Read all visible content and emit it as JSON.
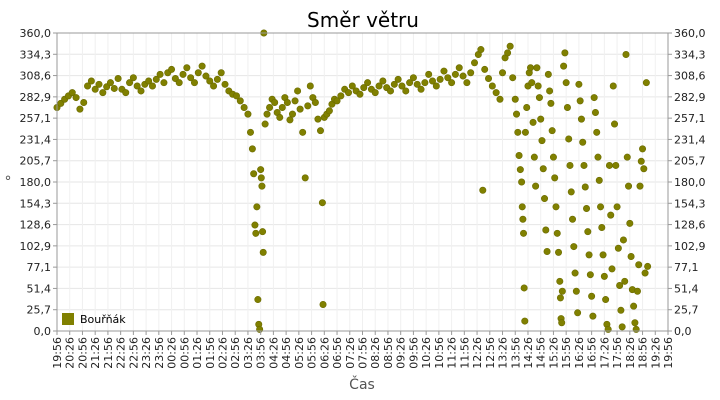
{
  "chart_data": {
    "type": "scatter",
    "title": "Směr větru",
    "xlabel": "Čas",
    "ylabel": "°",
    "ylim": [
      0,
      360
    ],
    "y_ticks": [
      "0,0",
      "25,7",
      "51,4",
      "77,1",
      "102,9",
      "128,6",
      "154,3",
      "180,0",
      "205,7",
      "231,4",
      "257,1",
      "282,9",
      "308,6",
      "334,3",
      "360,0"
    ],
    "x_ticks": [
      "19:56",
      "20:26",
      "20:56",
      "21:26",
      "21:56",
      "22:26",
      "22:56",
      "23:26",
      "23:56",
      "00:26",
      "00:56",
      "01:26",
      "01:56",
      "02:26",
      "02:56",
      "03:26",
      "03:56",
      "04:26",
      "04:56",
      "05:26",
      "05:56",
      "06:26",
      "06:56",
      "07:26",
      "07:56",
      "08:26",
      "08:56",
      "09:26",
      "09:56",
      "10:26",
      "10:56",
      "11:26",
      "11:56",
      "12:26",
      "12:56",
      "13:26",
      "13:56",
      "14:26",
      "14:56",
      "15:26",
      "15:56",
      "16:26",
      "16:56",
      "17:26",
      "17:56",
      "18:26",
      "18:56",
      "19:26",
      "19:56"
    ],
    "grid": true,
    "legend_position": "bottom-left",
    "series": [
      {
        "name": "Bouřňák",
        "color": "#808000",
        "points": [
          [
            0.0,
            270
          ],
          [
            0.3,
            275
          ],
          [
            0.6,
            280
          ],
          [
            0.9,
            284
          ],
          [
            1.2,
            288
          ],
          [
            1.5,
            282
          ],
          [
            1.8,
            268
          ],
          [
            2.1,
            276
          ],
          [
            2.4,
            296
          ],
          [
            2.7,
            302
          ],
          [
            3.0,
            292
          ],
          [
            3.3,
            298
          ],
          [
            3.6,
            288
          ],
          [
            3.9,
            295
          ],
          [
            4.2,
            300
          ],
          [
            4.5,
            293
          ],
          [
            4.8,
            305
          ],
          [
            5.1,
            292
          ],
          [
            5.4,
            288
          ],
          [
            5.7,
            300
          ],
          [
            6.0,
            306
          ],
          [
            6.3,
            296
          ],
          [
            6.6,
            290
          ],
          [
            6.9,
            298
          ],
          [
            7.2,
            302
          ],
          [
            7.5,
            296
          ],
          [
            7.8,
            304
          ],
          [
            8.1,
            310
          ],
          [
            8.4,
            300
          ],
          [
            8.7,
            312
          ],
          [
            9.0,
            316
          ],
          [
            9.3,
            305
          ],
          [
            9.6,
            300
          ],
          [
            9.9,
            310
          ],
          [
            10.2,
            318
          ],
          [
            10.5,
            306
          ],
          [
            10.8,
            300
          ],
          [
            11.1,
            312
          ],
          [
            11.4,
            320
          ],
          [
            11.7,
            308
          ],
          [
            12.0,
            302
          ],
          [
            12.3,
            296
          ],
          [
            12.6,
            304
          ],
          [
            12.9,
            312
          ],
          [
            13.2,
            298
          ],
          [
            13.5,
            290
          ],
          [
            13.8,
            286
          ],
          [
            14.1,
            284
          ],
          [
            14.4,
            278
          ],
          [
            14.7,
            270
          ],
          [
            15.0,
            262
          ],
          [
            15.2,
            240
          ],
          [
            15.35,
            220
          ],
          [
            15.45,
            190
          ],
          [
            15.55,
            128
          ],
          [
            15.62,
            118
          ],
          [
            15.7,
            150
          ],
          [
            15.78,
            38
          ],
          [
            15.85,
            8
          ],
          [
            15.92,
            2
          ],
          [
            16.0,
            195
          ],
          [
            16.05,
            185
          ],
          [
            16.1,
            175
          ],
          [
            16.15,
            120
          ],
          [
            16.2,
            95
          ],
          [
            16.25,
            360
          ],
          [
            16.35,
            250
          ],
          [
            16.5,
            262
          ],
          [
            16.7,
            270
          ],
          [
            16.9,
            280
          ],
          [
            17.1,
            276
          ],
          [
            17.3,
            264
          ],
          [
            17.5,
            258
          ],
          [
            17.7,
            270
          ],
          [
            17.9,
            282
          ],
          [
            18.1,
            276
          ],
          [
            18.3,
            255
          ],
          [
            18.5,
            262
          ],
          [
            18.7,
            278
          ],
          [
            18.9,
            290
          ],
          [
            19.1,
            268
          ],
          [
            19.3,
            240
          ],
          [
            19.5,
            185
          ],
          [
            19.7,
            272
          ],
          [
            19.9,
            296
          ],
          [
            20.1,
            282
          ],
          [
            20.3,
            276
          ],
          [
            20.5,
            256
          ],
          [
            20.7,
            242
          ],
          [
            20.85,
            155
          ],
          [
            20.9,
            32
          ],
          [
            21.0,
            258
          ],
          [
            21.2,
            262
          ],
          [
            21.4,
            266
          ],
          [
            21.6,
            274
          ],
          [
            21.8,
            280
          ],
          [
            22.0,
            278
          ],
          [
            22.3,
            284
          ],
          [
            22.6,
            292
          ],
          [
            22.9,
            288
          ],
          [
            23.2,
            296
          ],
          [
            23.5,
            290
          ],
          [
            23.8,
            286
          ],
          [
            24.1,
            294
          ],
          [
            24.4,
            300
          ],
          [
            24.7,
            292
          ],
          [
            25.0,
            288
          ],
          [
            25.3,
            296
          ],
          [
            25.6,
            302
          ],
          [
            25.9,
            294
          ],
          [
            26.2,
            290
          ],
          [
            26.5,
            298
          ],
          [
            26.8,
            304
          ],
          [
            27.1,
            296
          ],
          [
            27.4,
            290
          ],
          [
            27.7,
            300
          ],
          [
            28.0,
            306
          ],
          [
            28.3,
            298
          ],
          [
            28.6,
            292
          ],
          [
            28.9,
            300
          ],
          [
            29.2,
            310
          ],
          [
            29.5,
            302
          ],
          [
            29.8,
            296
          ],
          [
            30.1,
            304
          ],
          [
            30.4,
            314
          ],
          [
            30.7,
            306
          ],
          [
            31.0,
            300
          ],
          [
            31.3,
            310
          ],
          [
            31.6,
            318
          ],
          [
            31.9,
            308
          ],
          [
            32.2,
            300
          ],
          [
            32.5,
            312
          ],
          [
            32.8,
            324
          ],
          [
            33.1,
            334
          ],
          [
            33.3,
            340
          ],
          [
            33.45,
            170
          ],
          [
            33.6,
            316
          ],
          [
            33.9,
            305
          ],
          [
            34.2,
            296
          ],
          [
            34.5,
            288
          ],
          [
            34.8,
            280
          ],
          [
            35.0,
            312
          ],
          [
            35.2,
            330
          ],
          [
            35.4,
            336
          ],
          [
            35.6,
            344
          ],
          [
            35.8,
            306
          ],
          [
            36.0,
            280
          ],
          [
            36.1,
            262
          ],
          [
            36.2,
            240
          ],
          [
            36.3,
            212
          ],
          [
            36.4,
            195
          ],
          [
            36.5,
            180
          ],
          [
            36.55,
            150
          ],
          [
            36.6,
            135
          ],
          [
            36.65,
            118
          ],
          [
            36.7,
            52
          ],
          [
            36.75,
            12
          ],
          [
            36.8,
            240
          ],
          [
            36.9,
            270
          ],
          [
            37.0,
            296
          ],
          [
            37.1,
            312
          ],
          [
            37.2,
            318
          ],
          [
            37.3,
            300
          ],
          [
            37.4,
            252
          ],
          [
            37.5,
            210
          ],
          [
            37.6,
            175
          ],
          [
            37.7,
            318
          ],
          [
            37.8,
            296
          ],
          [
            37.9,
            282
          ],
          [
            38.0,
            256
          ],
          [
            38.1,
            230
          ],
          [
            38.2,
            196
          ],
          [
            38.3,
            160
          ],
          [
            38.4,
            122
          ],
          [
            38.5,
            96
          ],
          [
            38.6,
            310
          ],
          [
            38.7,
            290
          ],
          [
            38.8,
            275
          ],
          [
            38.9,
            242
          ],
          [
            39.0,
            210
          ],
          [
            39.1,
            185
          ],
          [
            39.2,
            150
          ],
          [
            39.3,
            118
          ],
          [
            39.4,
            95
          ],
          [
            39.5,
            60
          ],
          [
            39.55,
            40
          ],
          [
            39.6,
            15
          ],
          [
            39.65,
            10
          ],
          [
            39.7,
            48
          ],
          [
            39.8,
            320
          ],
          [
            39.9,
            336
          ],
          [
            40.0,
            300
          ],
          [
            40.1,
            270
          ],
          [
            40.2,
            232
          ],
          [
            40.3,
            200
          ],
          [
            40.4,
            168
          ],
          [
            40.5,
            135
          ],
          [
            40.6,
            102
          ],
          [
            40.7,
            70
          ],
          [
            40.8,
            48
          ],
          [
            40.9,
            22
          ],
          [
            41.0,
            298
          ],
          [
            41.1,
            278
          ],
          [
            41.2,
            256
          ],
          [
            41.3,
            228
          ],
          [
            41.4,
            200
          ],
          [
            41.5,
            174
          ],
          [
            41.6,
            148
          ],
          [
            41.7,
            120
          ],
          [
            41.8,
            92
          ],
          [
            41.9,
            68
          ],
          [
            42.0,
            42
          ],
          [
            42.1,
            18
          ],
          [
            42.2,
            282
          ],
          [
            42.3,
            264
          ],
          [
            42.4,
            240
          ],
          [
            42.5,
            210
          ],
          [
            42.6,
            182
          ],
          [
            42.7,
            150
          ],
          [
            42.8,
            125
          ],
          [
            42.9,
            92
          ],
          [
            43.0,
            66
          ],
          [
            43.1,
            38
          ],
          [
            43.2,
            8
          ],
          [
            43.3,
            2
          ],
          [
            43.4,
            200
          ],
          [
            43.5,
            140
          ],
          [
            43.6,
            75
          ],
          [
            43.7,
            296
          ],
          [
            43.8,
            250
          ],
          [
            43.9,
            200
          ],
          [
            44.0,
            150
          ],
          [
            44.1,
            100
          ],
          [
            44.2,
            55
          ],
          [
            44.3,
            25
          ],
          [
            44.4,
            5
          ],
          [
            44.5,
            110
          ],
          [
            44.6,
            60
          ],
          [
            44.7,
            334
          ],
          [
            44.8,
            210
          ],
          [
            44.9,
            175
          ],
          [
            45.0,
            130
          ],
          [
            45.1,
            90
          ],
          [
            45.2,
            50
          ],
          [
            45.3,
            30
          ],
          [
            45.4,
            10
          ],
          [
            45.5,
            2
          ],
          [
            45.6,
            48
          ],
          [
            45.7,
            80
          ],
          [
            45.8,
            175
          ],
          [
            45.9,
            205
          ],
          [
            46.0,
            220
          ],
          [
            46.1,
            196
          ],
          [
            46.2,
            70
          ],
          [
            46.3,
            300
          ],
          [
            46.4,
            78
          ]
        ]
      }
    ]
  }
}
